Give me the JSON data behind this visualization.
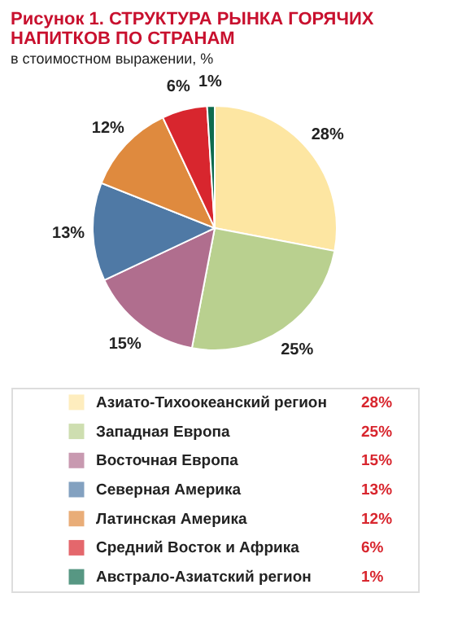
{
  "chart_data": {
    "type": "pie",
    "title": "Рисунок 1. СТРУКТУРА РЫНКА ГОРЯЧИХ НАПИТКОВ ПО СТРАНАМ",
    "subtitle": "в стоимостном выражении, %",
    "categories": [
      "Азиато-Тихоокеанский регион",
      "Западная Европа",
      "Восточная Европа",
      "Северная Америка",
      "Латинская Америка",
      "Средний Восток и Африка",
      "Австрало-Азиатский регион"
    ],
    "values": [
      28,
      25,
      15,
      13,
      12,
      6,
      1
    ],
    "colors": [
      "#fde6a2",
      "#b9d08f",
      "#b06e8e",
      "#4f79a5",
      "#df8a3e",
      "#d8262e",
      "#0f6b4f"
    ],
    "value_labels": [
      "28%",
      "25%",
      "15%",
      "13%",
      "12%",
      "6%",
      "1%"
    ],
    "legend": "bottom"
  }
}
